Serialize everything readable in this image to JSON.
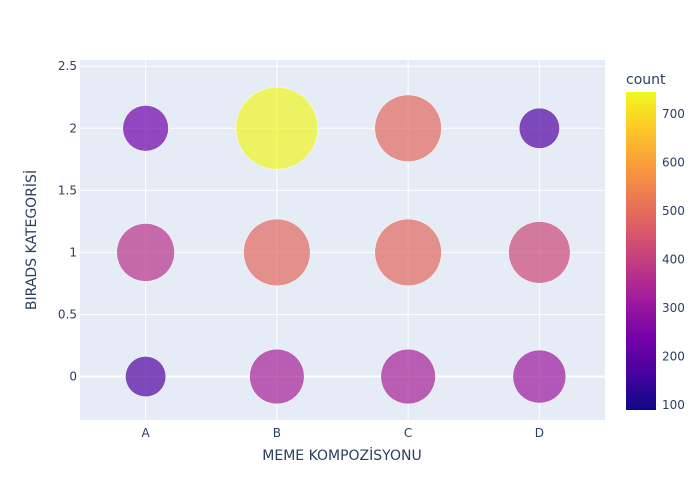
{
  "chart_data": {
    "type": "scatter",
    "xlabel": "MEME KOMPOZİSYONU",
    "ylabel": "BIRADS KATEGORİSİ",
    "x_categories": [
      "A",
      "B",
      "C",
      "D"
    ],
    "ylim": [
      -0.35,
      2.55
    ],
    "y_ticks": [
      0,
      0.5,
      1,
      1.5,
      2,
      2.5
    ],
    "y_tick_labels": [
      "0",
      "0.5",
      "1",
      "1.5",
      "2",
      "2.5"
    ],
    "grid": true,
    "points": [
      {
        "x": "A",
        "y": 0,
        "count": 180
      },
      {
        "x": "A",
        "y": 1,
        "count": 370
      },
      {
        "x": "A",
        "y": 2,
        "count": 230
      },
      {
        "x": "B",
        "y": 0,
        "count": 330
      },
      {
        "x": "B",
        "y": 1,
        "count": 490
      },
      {
        "x": "B",
        "y": 2,
        "count": 740
      },
      {
        "x": "C",
        "y": 0,
        "count": 330
      },
      {
        "x": "C",
        "y": 1,
        "count": 490
      },
      {
        "x": "C",
        "y": 2,
        "count": 490
      },
      {
        "x": "D",
        "y": 0,
        "count": 310
      },
      {
        "x": "D",
        "y": 1,
        "count": 420
      },
      {
        "x": "D",
        "y": 2,
        "count": 180
      }
    ],
    "size_max_count": 740,
    "colorbar": {
      "title": "count",
      "min": 90,
      "max": 745,
      "ticks": [
        100,
        200,
        300,
        400,
        500,
        600,
        700
      ],
      "tick_labels": [
        "100",
        "200",
        "300",
        "400",
        "500",
        "600",
        "700"
      ],
      "colorscale": [
        "#0d0887",
        "#46039f",
        "#7201a8",
        "#9c179e",
        "#bd3786",
        "#d8576b",
        "#ed7953",
        "#fb9f3a",
        "#fdca26",
        "#f0f921"
      ]
    }
  }
}
